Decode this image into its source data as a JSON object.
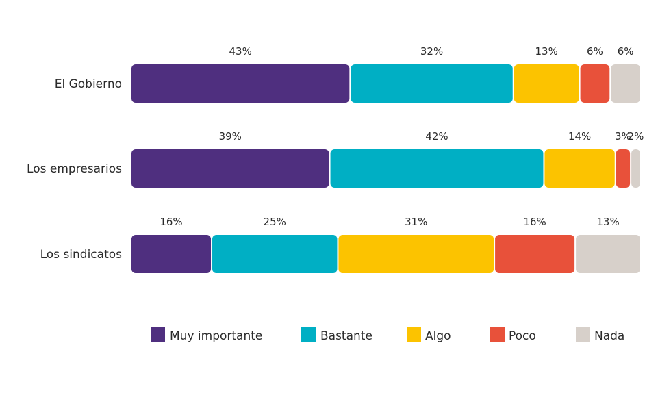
{
  "chart_data": {
    "type": "bar",
    "orientation": "horizontal",
    "stacked": true,
    "categories": [
      "El Gobierno",
      "Los empresarios",
      "Los sindicatos"
    ],
    "series": [
      {
        "name": "Muy importante",
        "color": "#4f2f7f",
        "values": [
          43,
          39,
          16
        ]
      },
      {
        "name": "Bastante",
        "color": "#00afc4",
        "values": [
          32,
          42,
          25
        ]
      },
      {
        "name": "Algo",
        "color": "#fcc300",
        "values": [
          13,
          14,
          31
        ]
      },
      {
        "name": "Poco",
        "color": "#e8513a",
        "values": [
          6,
          3,
          16
        ]
      },
      {
        "name": "Nada",
        "color": "#d7d0ca",
        "values": [
          6,
          2,
          13
        ]
      }
    ],
    "data_labels": [
      [
        "43%",
        "32%",
        "13%",
        "6%",
        "6%"
      ],
      [
        "39%",
        "42%",
        "14%",
        "3%",
        "2%"
      ],
      [
        "16%",
        "25%",
        "31%",
        "16%",
        "13%"
      ]
    ],
    "legend_position": "bottom",
    "grid": false
  }
}
